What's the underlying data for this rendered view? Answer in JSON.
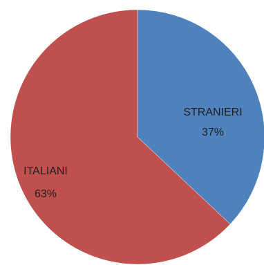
{
  "chart_data": {
    "type": "pie",
    "title": "",
    "legend": "none",
    "slices": [
      {
        "label": "STRANIERI",
        "percent_label": "37%",
        "value": 37,
        "color": "#4f81bd"
      },
      {
        "label": "ITALIANI",
        "percent_label": "63%",
        "value": 63,
        "color": "#c0504d"
      }
    ]
  }
}
